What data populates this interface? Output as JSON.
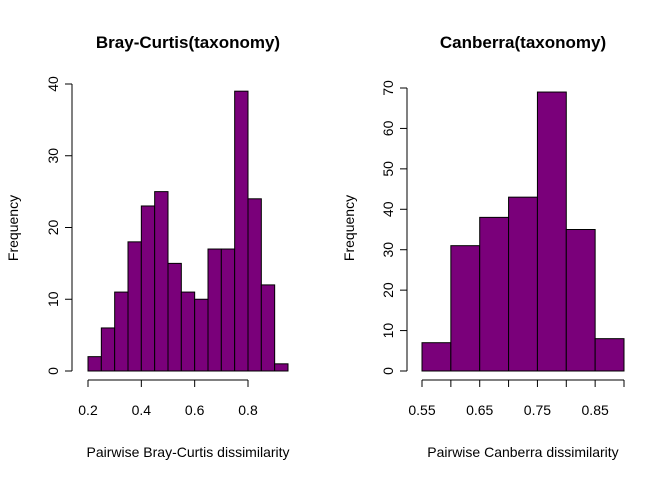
{
  "colors": {
    "bar_fill": "#7a007a",
    "bar_stroke": "#000000"
  },
  "chart_data": [
    {
      "type": "bar",
      "title": "Bray-Curtis(taxonomy)",
      "xlabel": "Pairwise Bray-Curtis dissimilarity",
      "ylabel": "Frequency",
      "bin_edges": [
        0.2,
        0.25,
        0.3,
        0.35,
        0.4,
        0.45,
        0.5,
        0.55,
        0.6,
        0.65,
        0.7,
        0.75,
        0.8,
        0.85,
        0.9,
        0.95
      ],
      "values": [
        2,
        6,
        11,
        18,
        23,
        25,
        15,
        11,
        10,
        17,
        17,
        39,
        24,
        12,
        1
      ],
      "xlim": [
        0.2,
        0.95
      ],
      "ylim": [
        0,
        40
      ],
      "xticks": [
        0.2,
        0.4,
        0.6,
        0.8
      ],
      "xtick_labels": [
        "0.2",
        "0.4",
        "0.6",
        "0.8"
      ],
      "yticks": [
        0,
        10,
        20,
        30,
        40
      ],
      "ytick_labels": [
        "0",
        "10",
        "20",
        "30",
        "40"
      ],
      "grid": false
    },
    {
      "type": "bar",
      "title": "Canberra(taxonomy)",
      "xlabel": "Pairwise Canberra dissimilarity",
      "ylabel": "Frequency",
      "bin_edges": [
        0.55,
        0.6,
        0.65,
        0.7,
        0.75,
        0.8,
        0.85,
        0.9
      ],
      "values": [
        7,
        31,
        38,
        43,
        69,
        35,
        8
      ],
      "xlim": [
        0.55,
        0.9
      ],
      "ylim": [
        0,
        70
      ],
      "xticks": [
        0.55,
        0.6,
        0.65,
        0.7,
        0.75,
        0.8,
        0.85,
        0.9
      ],
      "xtick_labels": [
        "0.55",
        "",
        "0.65",
        "",
        "0.75",
        "",
        "0.85",
        ""
      ],
      "yticks": [
        0,
        10,
        20,
        30,
        40,
        50,
        60,
        70
      ],
      "ytick_labels": [
        "0",
        "10",
        "20",
        "30",
        "40",
        "50",
        "60",
        "70"
      ],
      "grid": false
    }
  ]
}
